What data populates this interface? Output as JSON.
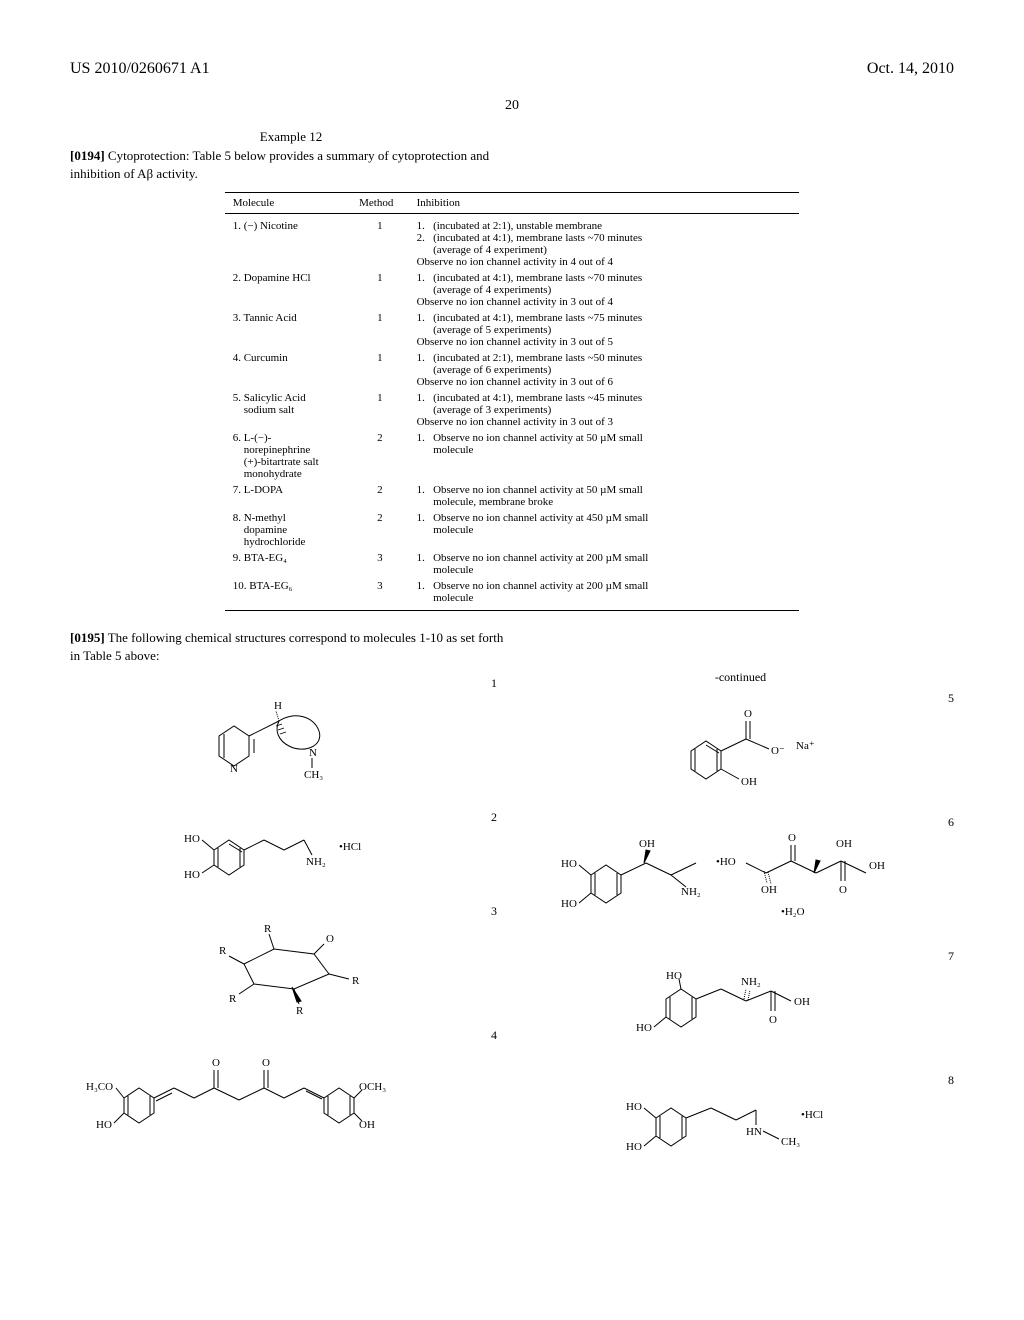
{
  "header": {
    "pub_number": "US 2010/0260671 A1",
    "pub_date": "Oct. 14, 2010",
    "page": "20"
  },
  "example": {
    "title": "Example 12",
    "para194_num": "[0194]",
    "para194_text": "Cytoprotection: Table 5 below provides a summary of cytoprotection and inhibition of Aβ activity.",
    "para195_num": "[0195]",
    "para195_text": "The following chemical structures correspond to molecules 1-10 as set forth in Table 5 above:"
  },
  "table": {
    "headers": {
      "mol": "Molecule",
      "meth": "Method",
      "inh": "Inhibition"
    },
    "rows": [
      {
        "mol": "1. (−) Nicotine",
        "meth": "1",
        "lines": [
          "1.   (incubated at 2:1), unstable membrane",
          "2.   (incubated at 4:1), membrane lasts ~70 minutes",
          "      (average of 4 experiment)",
          "Observe no ion channel activity in 4 out of 4"
        ]
      },
      {
        "mol": "2. Dopamine HCl",
        "meth": "1",
        "lines": [
          "1.   (incubated at 4:1), membrane lasts ~70 minutes",
          "      (average of 4 experiments)",
          "Observe no ion channel activity in 3 out of 4"
        ]
      },
      {
        "mol": "3. Tannic Acid",
        "meth": "1",
        "lines": [
          "1.   (incubated at 4:1), membrane lasts ~75 minutes",
          "      (average of 5 experiments)",
          "Observe no ion channel activity in 3 out of 5"
        ]
      },
      {
        "mol": "4. Curcumin",
        "meth": "1",
        "lines": [
          "1.   (incubated at 2:1), membrane lasts ~50 minutes",
          "      (average of 6 experiments)",
          "Observe no ion channel activity in 3 out of 6"
        ]
      },
      {
        "mol": "5. Salicylic Acid\n    sodium salt",
        "meth": "1",
        "lines": [
          "1.   (incubated at 4:1), membrane lasts ~45 minutes",
          "      (average of 3 experiments)",
          "Observe no ion channel activity in 3 out of 3"
        ]
      },
      {
        "mol": "6. L-(−)-\n    norepinephrine\n    (+)-bitartrate salt\n    monohydrate",
        "meth": "2",
        "lines": [
          "1.   Observe no ion channel activity at 50 µM small",
          "      molecule"
        ]
      },
      {
        "mol": "7. L-DOPA",
        "meth": "2",
        "lines": [
          "1.   Observe no ion channel activity at 50 µM small",
          "      molecule, membrane broke"
        ]
      },
      {
        "mol": "8. N-methyl\n    dopamine\n    hydrochloride",
        "meth": "2",
        "lines": [
          "1.   Observe no ion channel activity at 450 µM small",
          "      molecule"
        ]
      },
      {
        "mol": "9. BTA-EG₄",
        "meth": "3",
        "lines": [
          "1.   Observe no ion channel activity at 200 µM small",
          "      molecule"
        ]
      },
      {
        "mol": "10. BTA-EG₆",
        "meth": "3",
        "lines": [
          "1.   Observe no ion channel activity at 200 µM small",
          "      molecule"
        ]
      }
    ]
  },
  "continued_label": "-continued",
  "structures": {
    "s1": "1",
    "s2": "2",
    "s3": "3",
    "s4": "4",
    "s5": "5",
    "s6": "6",
    "s7": "7",
    "s8": "8"
  },
  "labels": {
    "H": "H",
    "N": "N",
    "CH3": "CH₃",
    "HO": "HO",
    "OH": "OH",
    "NH2": "NH₂",
    "HCl": "•HCl",
    "R": "R",
    "O": "O",
    "H3CO": "H₃CO",
    "OCH3": "OCH₃",
    "Na": "Na⁺",
    "Ominus": "O⁻",
    "H2O": "•H₂O",
    "HN": "HN"
  }
}
